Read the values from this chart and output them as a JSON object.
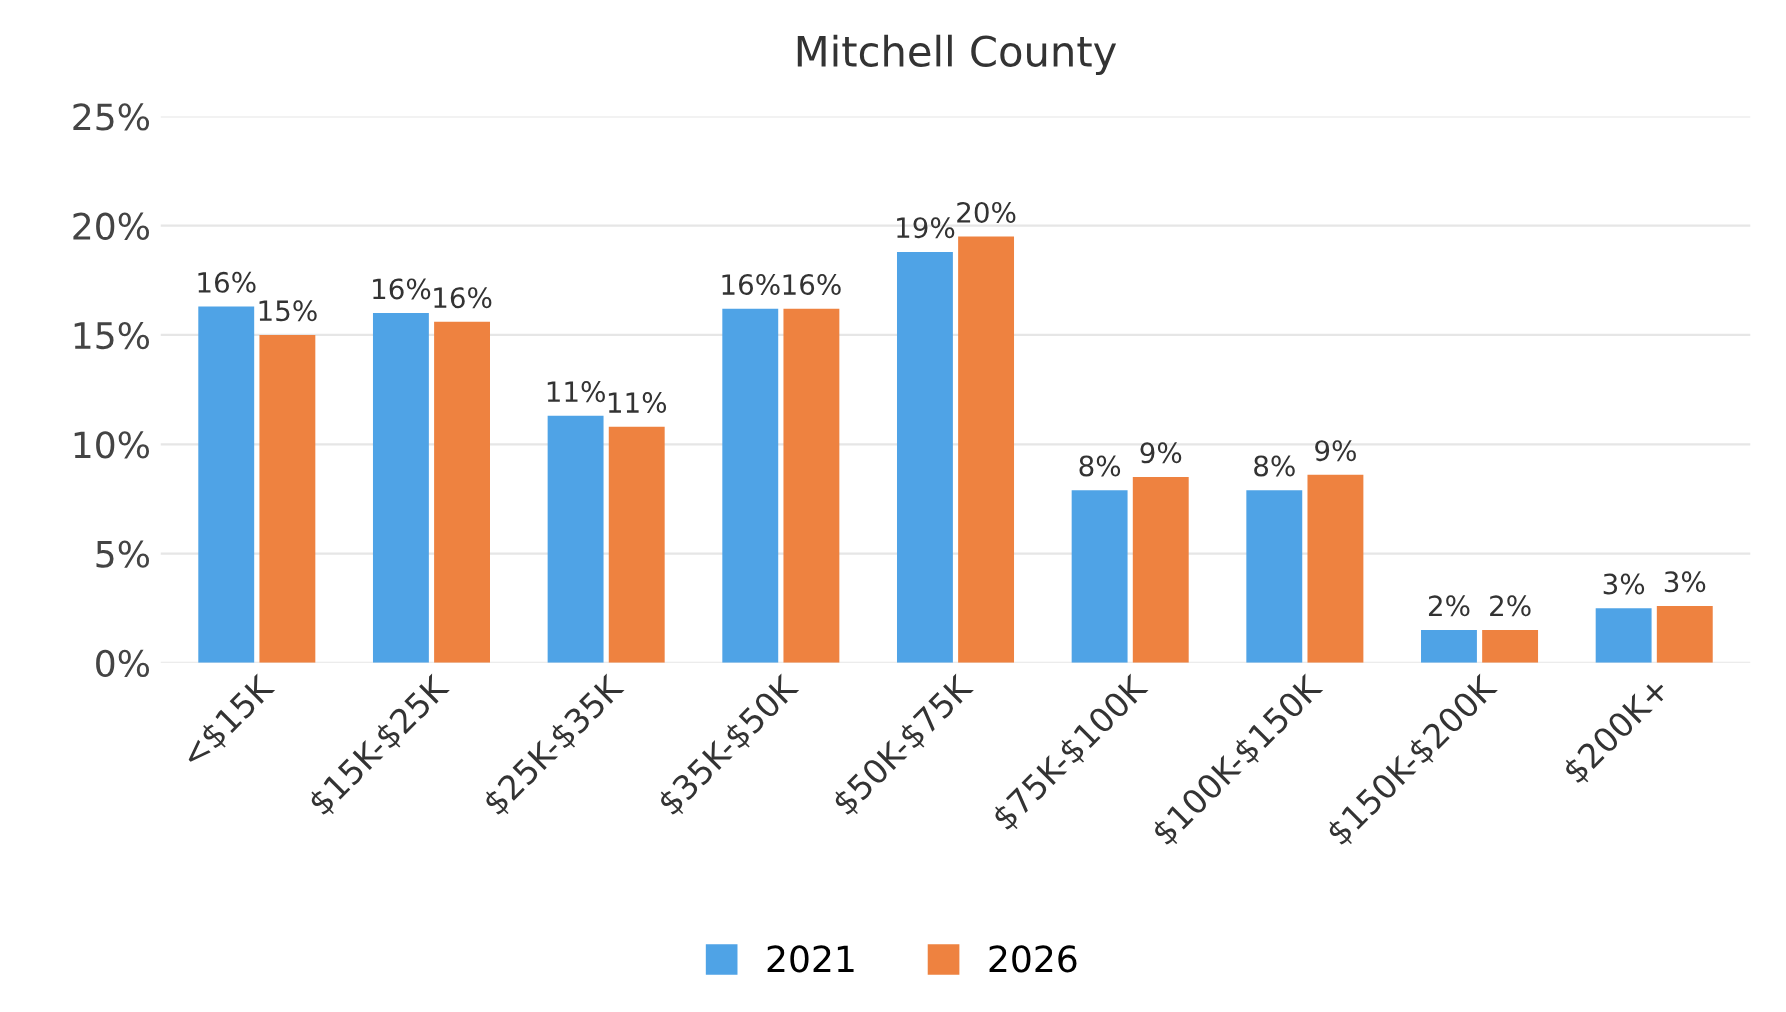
{
  "chart_data": {
    "type": "bar",
    "title": "Mitchell County",
    "categories": [
      "<$15K",
      "$15K-$25K",
      "$25K-$35K",
      "$35K-$50K",
      "$50K-$75K",
      "$75K-$100K",
      "$100K-$150K",
      "$150K-$200K",
      "$200K+"
    ],
    "series": [
      {
        "name": "2021",
        "color": "#4fa3e6",
        "values": [
          16.3,
          16.0,
          11.3,
          16.2,
          18.8,
          7.9,
          7.9,
          1.5,
          2.5
        ],
        "value_labels": [
          "16%",
          "16%",
          "11%",
          "16%",
          "19%",
          "8%",
          "8%",
          "2%",
          "3%"
        ]
      },
      {
        "name": "2026",
        "color": "#ee8240",
        "values": [
          15.0,
          15.6,
          10.8,
          16.2,
          19.5,
          8.5,
          8.6,
          1.5,
          2.6
        ],
        "value_labels": [
          "15%",
          "16%",
          "11%",
          "16%",
          "20%",
          "9%",
          "9%",
          "2%",
          "3%"
        ]
      }
    ],
    "ylim": [
      0,
      25
    ],
    "yticks": [
      {
        "value": 0,
        "label": "0%"
      },
      {
        "value": 5,
        "label": "5%"
      },
      {
        "value": 10,
        "label": "10%"
      },
      {
        "value": 15,
        "label": "15%"
      },
      {
        "value": 20,
        "label": "20%"
      },
      {
        "value": 25,
        "label": "25%"
      }
    ],
    "grid": "y",
    "legend": "bottom"
  }
}
